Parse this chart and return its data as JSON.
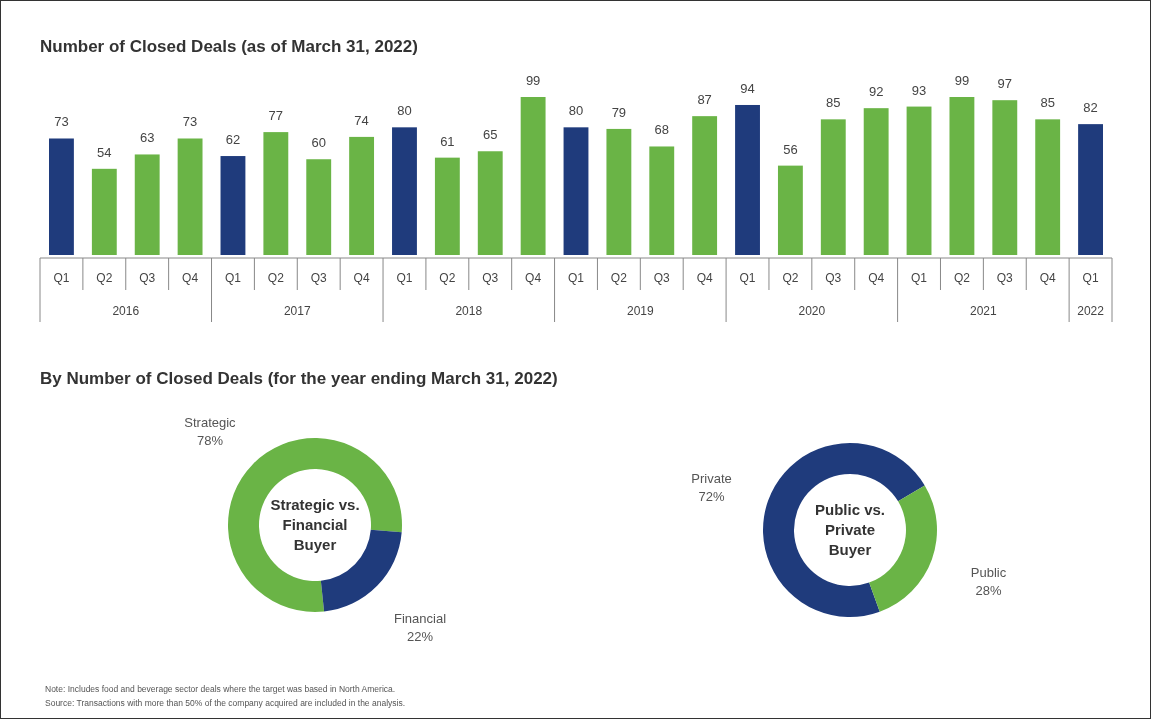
{
  "chart_data": [
    {
      "type": "bar",
      "title": "Number of Closed Deals (as of March 31, 2022)",
      "categories": [
        "Q1",
        "Q2",
        "Q3",
        "Q4",
        "Q1",
        "Q2",
        "Q3",
        "Q4",
        "Q1",
        "Q2",
        "Q3",
        "Q4",
        "Q1",
        "Q2",
        "Q3",
        "Q4",
        "Q1",
        "Q2",
        "Q3",
        "Q4",
        "Q1",
        "Q2",
        "Q3",
        "Q4",
        "Q1"
      ],
      "values": [
        73,
        54,
        63,
        73,
        62,
        77,
        60,
        74,
        80,
        61,
        65,
        99,
        80,
        79,
        68,
        87,
        94,
        56,
        85,
        92,
        93,
        99,
        97,
        85,
        82
      ],
      "colors": [
        "#1f3b7c",
        "#6ab446",
        "#6ab446",
        "#6ab446",
        "#1f3b7c",
        "#6ab446",
        "#6ab446",
        "#6ab446",
        "#1f3b7c",
        "#6ab446",
        "#6ab446",
        "#6ab446",
        "#1f3b7c",
        "#6ab446",
        "#6ab446",
        "#6ab446",
        "#1f3b7c",
        "#6ab446",
        "#6ab446",
        "#6ab446",
        "#6ab446",
        "#6ab446",
        "#6ab446",
        "#6ab446",
        "#1f3b7c"
      ],
      "data_labels": true,
      "annotations": [
        "2016",
        "2017",
        "2018",
        "2019",
        "2020",
        "2021",
        "2022"
      ]
    },
    {
      "type": "donut",
      "subtitle": "By Number of Closed Deals (for the year ending March 31, 2022)",
      "title": "Strategic vs.\nFinancial\nBuyer",
      "categories": [
        "Strategic",
        "Financial"
      ],
      "values": [
        78,
        22
      ],
      "colors": [
        "#6ab446",
        "#1f3b7c"
      ],
      "value_labels": [
        "78%",
        "22%"
      ]
    },
    {
      "type": "donut",
      "title": "Public vs.\nPrivate\nBuyer",
      "categories": [
        "Private",
        "Public"
      ],
      "values": [
        72,
        28
      ],
      "colors": [
        "#1f3b7c",
        "#6ab446"
      ],
      "value_labels": [
        "72%",
        "28%"
      ],
      "annotations": [
        "Note: Includes food and beverage sector deals where the target was based in North America.",
        "Source: Transactions with more than 50% of the company acquired are included in the analysis."
      ]
    }
  ]
}
